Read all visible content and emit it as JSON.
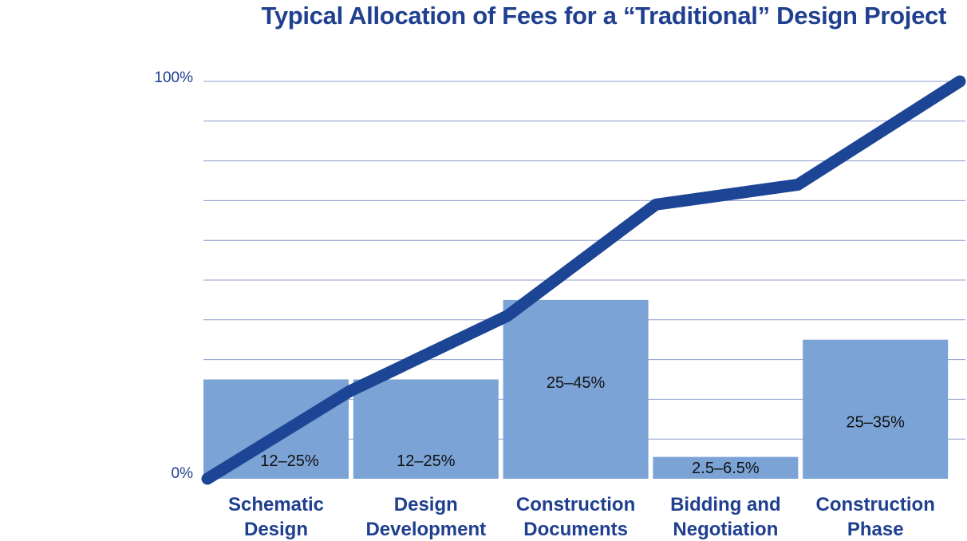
{
  "chart_data": {
    "type": "bar",
    "title": "Typical Allocation of Fees for a “Traditional” Design Project",
    "categories": [
      [
        "Schematic",
        "Design"
      ],
      [
        "Design",
        "Development"
      ],
      [
        "Construction",
        "Documents"
      ],
      [
        "Bidding and",
        "Negotiation"
      ],
      [
        "Construction",
        "Phase"
      ]
    ],
    "bar_labels": [
      "12–25%",
      "12–25%",
      "25–45%",
      "2.5–6.5%",
      "25–35%"
    ],
    "values": [
      25,
      25,
      45,
      5.5,
      35
    ],
    "line": {
      "x": [
        0,
        1,
        2,
        3,
        4,
        5
      ],
      "values": [
        0,
        22,
        41,
        69,
        74,
        100
      ]
    },
    "y_tick_labels": [
      "0%",
      "100%"
    ],
    "ylim": [
      0,
      100
    ],
    "grid": true,
    "colors": {
      "bar": "#7ba3d6",
      "line": "#1d4596",
      "text": "#1f3f8f",
      "grid": "#8f9ccc"
    }
  }
}
